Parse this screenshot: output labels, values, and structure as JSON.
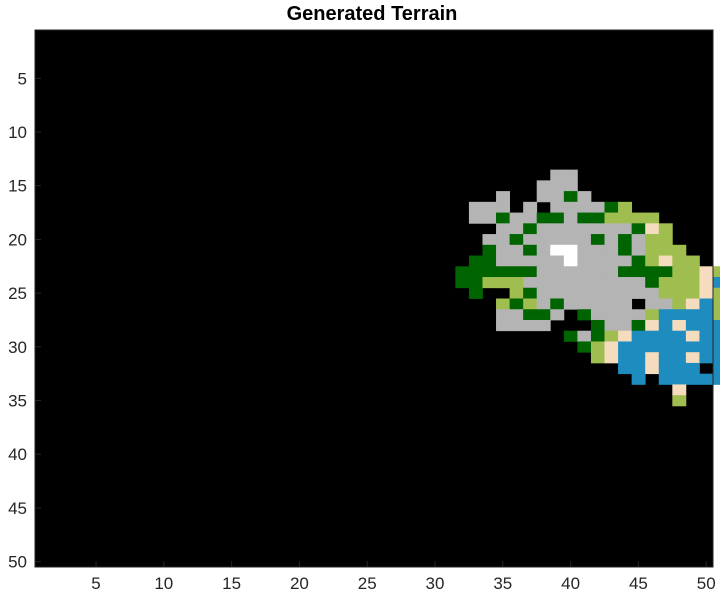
{
  "chart_data": {
    "type": "heatmap",
    "title": "Generated Terrain",
    "xlabel": "",
    "ylabel": "",
    "grid": false,
    "xlim": [
      0.5,
      50.5
    ],
    "ylim": [
      0.5,
      50.5
    ],
    "y_reversed": true,
    "x_ticks": [
      5,
      10,
      15,
      20,
      25,
      30,
      35,
      40,
      45,
      50
    ],
    "y_ticks": [
      5,
      10,
      15,
      20,
      25,
      30,
      35,
      40,
      45,
      50
    ],
    "background": "#000000",
    "colors": {
      "empty": "#000000",
      "g": "#b4b4b4",
      "d": "#006400",
      "l": "#a0be50",
      "s": "#f5dcbe",
      "b": "#1e8cbe",
      "w": "#ffffff"
    },
    "legend_codes": {
      "g": "gray",
      "d": "dark green",
      "l": "light green",
      "s": "sand",
      "b": "blue",
      "w": "white"
    },
    "rows": [
      {
        "row": 14,
        "cells": "39:gg"
      },
      {
        "row": 15,
        "cells": "38:ggg"
      },
      {
        "row": 16,
        "cells": "35:g..ggdg"
      },
      {
        "row": 17,
        "cells": "33:ggg.g.ggggdl"
      },
      {
        "row": 18,
        "cells": "33:ggdggddgddllll"
      },
      {
        "row": 19,
        "cells": "35:ggdgggggggdsl"
      },
      {
        "row": 20,
        "cells": "34:ggdgggggdgdgll"
      },
      {
        "row": 21,
        "cells": "34:dggdgwwgggdglll"
      },
      {
        "row": 22,
        "cells": "33:ddgggggwggggdlsll"
      },
      {
        "row": 23,
        "cells": "32:ddddddggggggddddllsl"
      },
      {
        "row": 24,
        "cells": "32:ddlllgggggggggdlllsbl"
      },
      {
        "row": 25,
        "cells": "33:d..ldggggggggglllsll"
      },
      {
        "row": 26,
        "cells": "35:ldlgdggggg.gglsbllb"
      },
      {
        "row": 27,
        "cells": "35:ggddg.dgggglbbbbls"
      },
      {
        "row": 28,
        "cells": "35:gggg...dggdsbsbbbbb"
      },
      {
        "row": 29,
        "cells": "40:dgdlsbbbbsbbb"
      },
      {
        "row": 30,
        "cells": "41:dlsbbbbbbbbb"
      },
      {
        "row": 31,
        "cells": "42:lsbbsbbsbbb"
      },
      {
        "row": 32,
        "cells": "44:bbsbbb.bb"
      },
      {
        "row": 33,
        "cells": "45:b.bbbbb"
      },
      {
        "row": 34,
        "cells": "48:s"
      },
      {
        "row": 35,
        "cells": "48:l"
      }
    ]
  }
}
